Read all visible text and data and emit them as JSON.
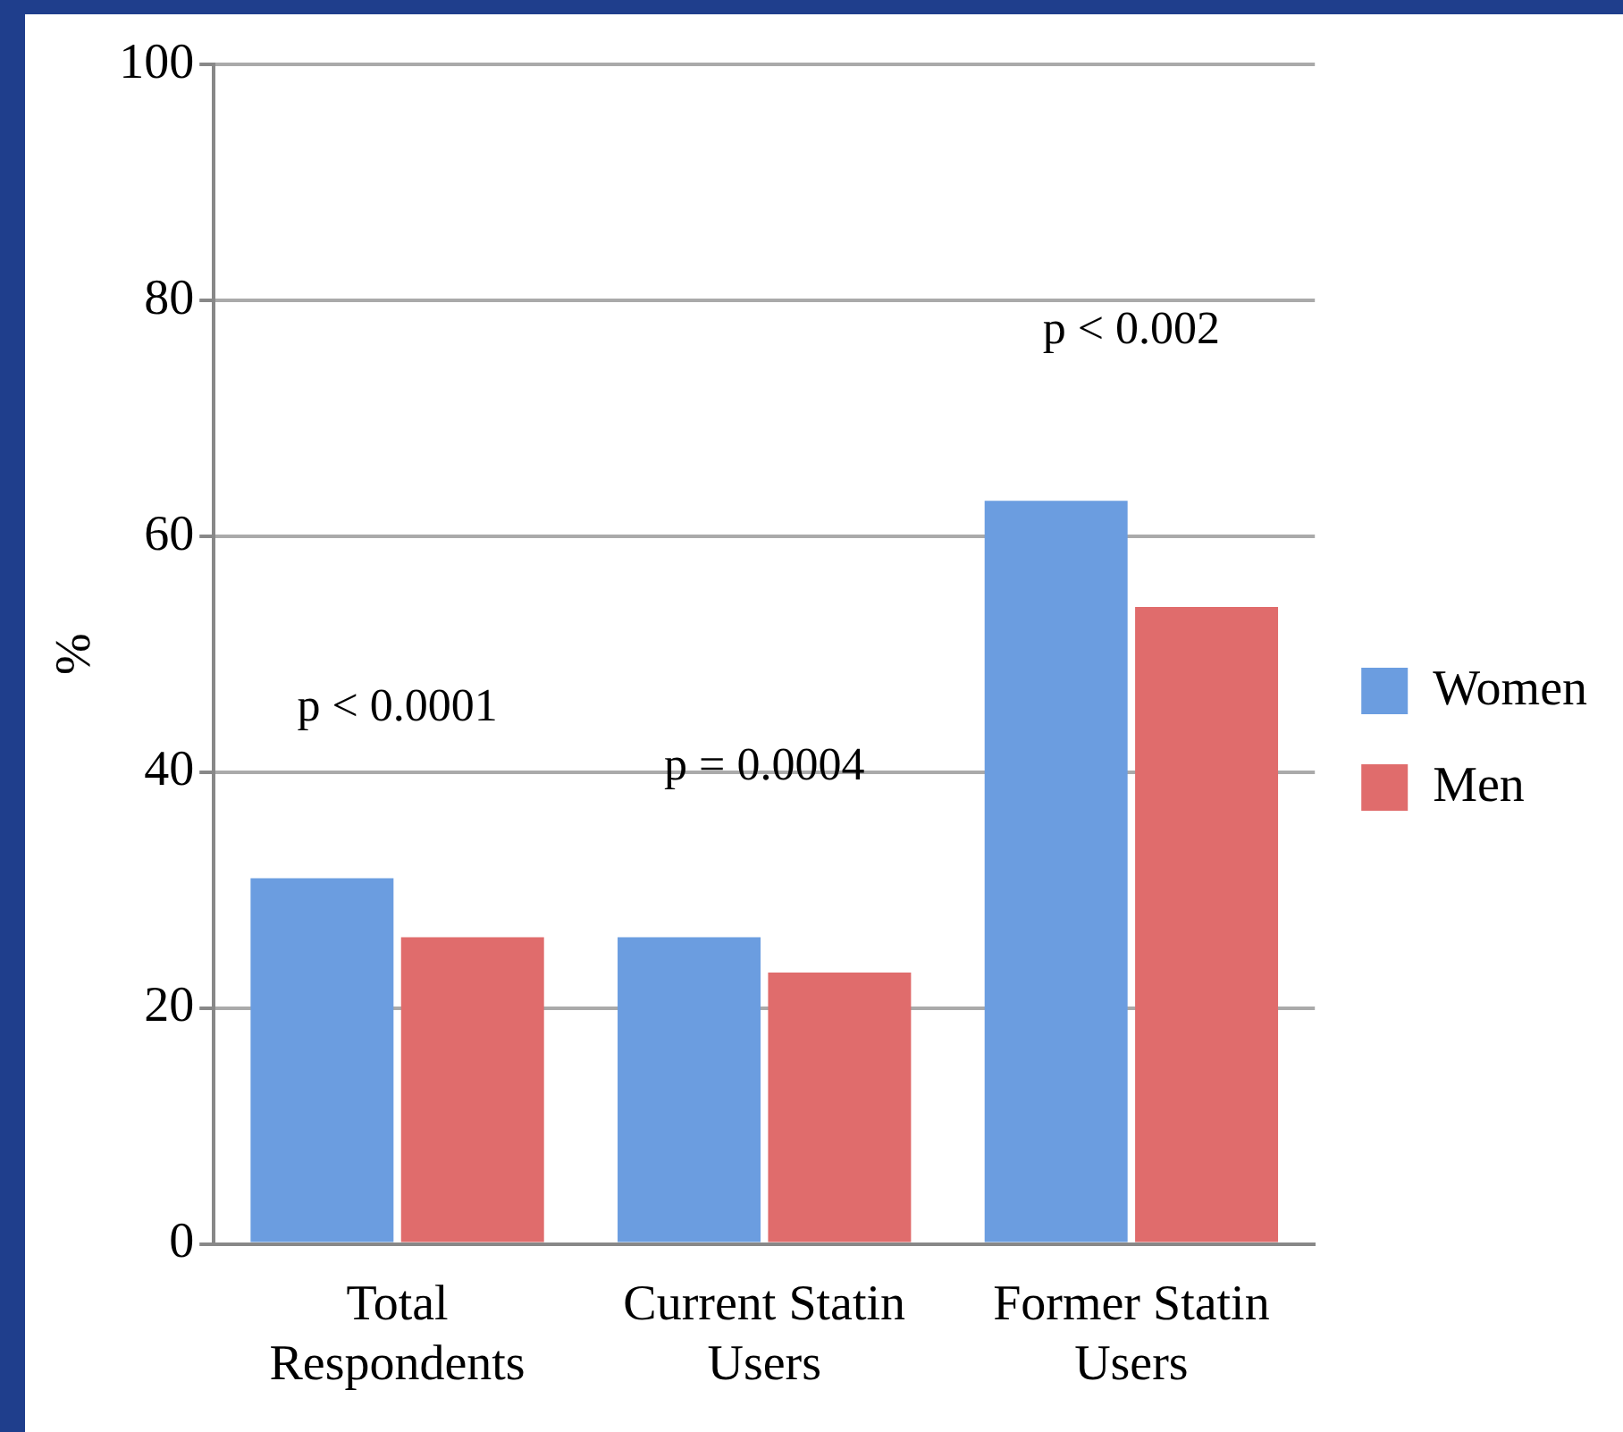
{
  "chart_data": {
    "type": "bar",
    "ylabel": "%",
    "categories": [
      "Total\nRespondents",
      "Current Statin\nUsers",
      "Former Statin\nUsers"
    ],
    "series": [
      {
        "name": "Women",
        "color": "#6b9de0",
        "values": [
          31,
          26,
          63
        ]
      },
      {
        "name": "Men",
        "color": "#e06c6c",
        "values": [
          26,
          23,
          54
        ]
      }
    ],
    "ylim": [
      0,
      100
    ],
    "yticks": [
      0,
      20,
      40,
      60,
      80,
      100
    ],
    "grid": "y",
    "legend": "right",
    "annotations": [
      "p < 0.0001",
      "p = 0.0004",
      "p < 0.002"
    ]
  }
}
